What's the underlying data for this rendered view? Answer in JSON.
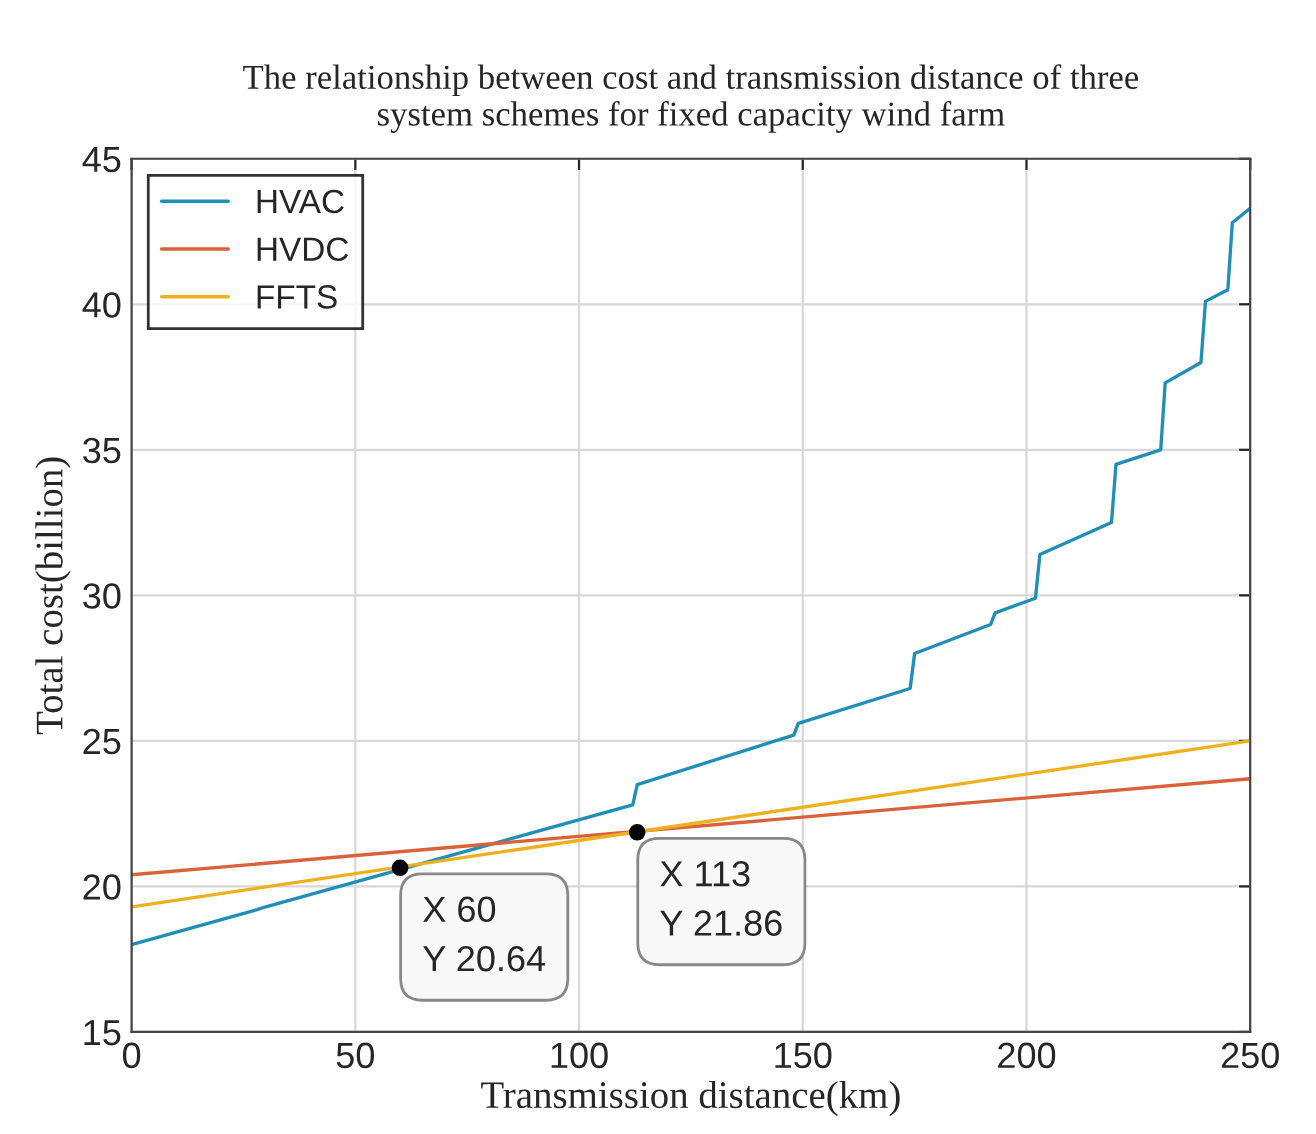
{
  "chart_data": {
    "type": "line",
    "title": "The relationship between cost and transmission distance of three\nsystem schemes for fixed capacity wind farm",
    "xlabel": "Transmission distance(km)",
    "ylabel": "Total cost(billion)",
    "series": [
      {
        "name": "HVAC",
        "color": "#1f8fb8",
        "x": [
          0,
          28,
          30,
          112,
          113,
          148,
          149,
          174,
          175,
          192,
          193,
          202,
          203,
          219,
          220,
          230,
          231,
          239,
          240,
          245,
          246,
          250
        ],
        "values": [
          18.0,
          19.2,
          19.3,
          22.8,
          23.5,
          25.2,
          25.6,
          26.8,
          28.0,
          29.0,
          29.4,
          29.9,
          31.4,
          32.5,
          34.5,
          35.0,
          37.3,
          38.0,
          40.1,
          40.5,
          42.8,
          43.3
        ]
      },
      {
        "name": "HVDC",
        "color": "#d9623b",
        "x": [
          0,
          250
        ],
        "values": [
          20.4,
          23.7
        ]
      },
      {
        "name": "FFTS",
        "color": "#edb120",
        "x": [
          0,
          250
        ],
        "values": [
          19.3,
          25.0
        ]
      }
    ],
    "annotations": [
      {
        "text": "X 60\nY 20.64",
        "x": 60,
        "y": 20.64
      },
      {
        "text": "X 113\nY 21.86",
        "x": 113,
        "y": 21.86
      }
    ],
    "xlim": [
      0,
      250
    ],
    "xticks": [
      0,
      50,
      100,
      150,
      200,
      250
    ],
    "ylim": [
      15,
      45
    ],
    "yticks": [
      15,
      20,
      25,
      30,
      35,
      40,
      45
    ],
    "grid": true,
    "legend": "top left"
  }
}
